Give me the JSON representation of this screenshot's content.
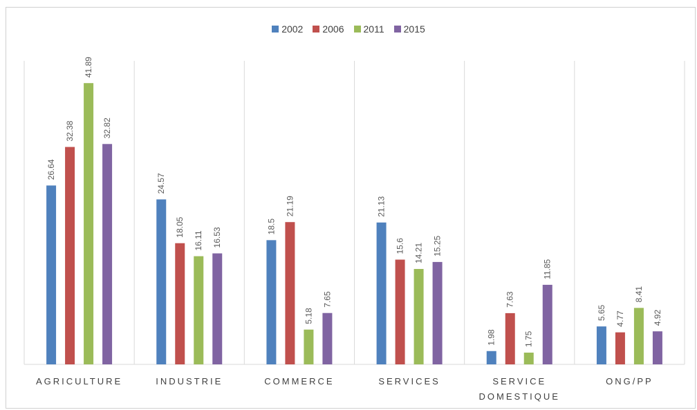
{
  "chart_data": {
    "type": "bar",
    "categories": [
      "AGRICULTURE",
      "INDUSTRIE",
      "COMMERCE",
      "SERVICES",
      "SERVICE DOMESTIQUE",
      "ONG/PP"
    ],
    "series": [
      {
        "name": "2002",
        "color": "#4f81bd",
        "values": [
          26.64,
          24.57,
          18.5,
          21.13,
          1.98,
          5.65
        ]
      },
      {
        "name": "2006",
        "color": "#c0504d",
        "values": [
          32.38,
          18.05,
          21.19,
          15.6,
          7.63,
          4.77
        ]
      },
      {
        "name": "2011",
        "color": "#9bbb59",
        "values": [
          41.89,
          16.11,
          5.18,
          14.21,
          1.75,
          8.41
        ]
      },
      {
        "name": "2015",
        "color": "#8064a2",
        "values": [
          32.82,
          16.53,
          7.65,
          15.25,
          11.85,
          4.92
        ]
      }
    ],
    "ylim": [
      0,
      45
    ],
    "legend": "top"
  }
}
